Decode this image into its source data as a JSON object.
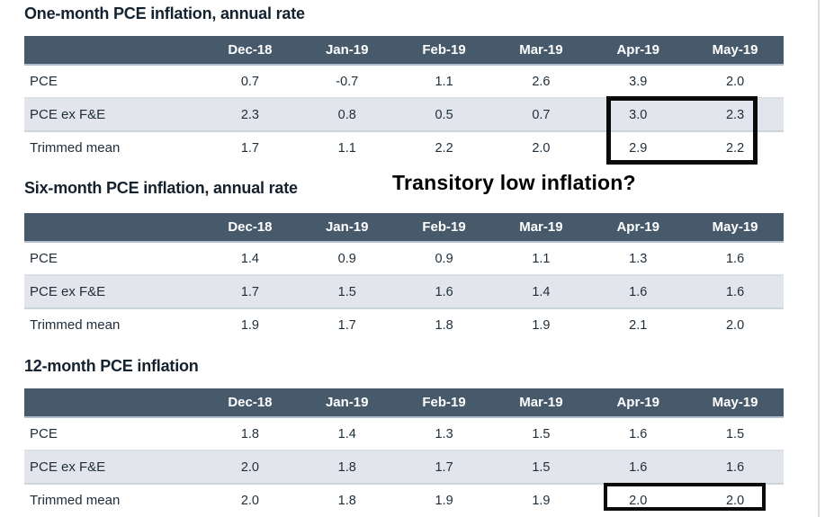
{
  "theme": {
    "header_bg": "#475a6c",
    "header_text": "#ffffff",
    "stripe_bg": "#e2e6ec",
    "title_color": "#14222f",
    "body_text": "#1e2d3a",
    "highlight_border": "#0a0a0a",
    "page_edge_line": "#d9dde1"
  },
  "annotation": {
    "text": "Transitory low inflation?"
  },
  "tables": [
    {
      "title": "One-month PCE inflation, annual rate",
      "columns": [
        "Dec-18",
        "Jan-19",
        "Feb-19",
        "Mar-19",
        "Apr-19",
        "May-19"
      ],
      "rows": [
        {
          "label": "PCE",
          "values": [
            "0.7",
            "-0.7",
            "1.1",
            "2.6",
            "3.9",
            "2.0"
          ]
        },
        {
          "label": "PCE ex F&E",
          "values": [
            "2.3",
            "0.8",
            "0.5",
            "0.7",
            "3.0",
            "2.3"
          ]
        },
        {
          "label": "Trimmed mean",
          "values": [
            "1.7",
            "1.1",
            "2.2",
            "2.0",
            "2.9",
            "2.2"
          ]
        }
      ],
      "highlight_note": "black box around Apr-19 and May-19 values of PCE ex F&E and Trimmed mean rows"
    },
    {
      "title": "Six-month PCE inflation, annual rate",
      "columns": [
        "Dec-18",
        "Jan-19",
        "Feb-19",
        "Mar-19",
        "Apr-19",
        "May-19"
      ],
      "rows": [
        {
          "label": "PCE",
          "values": [
            "1.4",
            "0.9",
            "0.9",
            "1.1",
            "1.3",
            "1.6"
          ]
        },
        {
          "label": "PCE ex F&E",
          "values": [
            "1.7",
            "1.5",
            "1.6",
            "1.4",
            "1.6",
            "1.6"
          ]
        },
        {
          "label": "Trimmed mean",
          "values": [
            "1.9",
            "1.7",
            "1.8",
            "1.9",
            "2.1",
            "2.0"
          ]
        }
      ]
    },
    {
      "title": "12-month PCE inflation",
      "columns": [
        "Dec-18",
        "Jan-19",
        "Feb-19",
        "Mar-19",
        "Apr-19",
        "May-19"
      ],
      "rows": [
        {
          "label": "PCE",
          "values": [
            "1.8",
            "1.4",
            "1.3",
            "1.5",
            "1.6",
            "1.5"
          ]
        },
        {
          "label": "PCE ex F&E",
          "values": [
            "2.0",
            "1.8",
            "1.7",
            "1.5",
            "1.6",
            "1.6"
          ]
        },
        {
          "label": "Trimmed mean",
          "values": [
            "2.0",
            "1.8",
            "1.9",
            "1.9",
            "2.0",
            "2.0"
          ]
        }
      ],
      "highlight_note": "black box around Apr-19 and May-19 values of Trimmed mean row"
    }
  ]
}
